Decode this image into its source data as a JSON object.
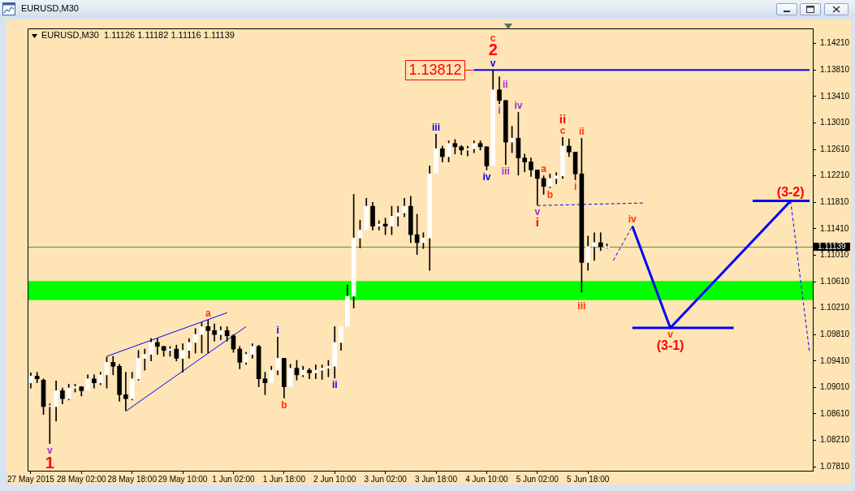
{
  "chart_data": {
    "type": "candlestick",
    "title": "EURUSD,M30",
    "subtitle": "EURUSD,M30  1.11126 1.11182 1.11116 1.11139",
    "categories": [
      "27 May 2015",
      null,
      null,
      null,
      null,
      null,
      null,
      null,
      "28 May 02:00",
      null,
      null,
      null,
      null,
      null,
      null,
      null,
      "28 May 18:00",
      null,
      null,
      null,
      null,
      null,
      null,
      null,
      "29 May 10:00",
      null,
      null,
      null,
      null,
      null,
      null,
      null,
      "1 Jun 02:00",
      null,
      null,
      null,
      null,
      null,
      null,
      null,
      "1 Jun 18:00",
      null,
      null,
      null,
      null,
      null,
      null,
      null,
      "2 Jun 10:00",
      null,
      null,
      null,
      null,
      null,
      null,
      null,
      "3 Jun 02:00",
      null,
      null,
      null,
      null,
      null,
      null,
      null,
      "3 Jun 18:00",
      null,
      null,
      null,
      null,
      null,
      null,
      null,
      "4 Jun 10:00",
      null,
      null,
      null,
      null,
      null,
      null,
      null,
      "5 Jun 02:00",
      null,
      null,
      null,
      null,
      null,
      null,
      null,
      "5 Jun 18:00",
      null,
      null,
      null,
      null,
      null,
      null,
      null,
      null,
      null,
      null,
      null,
      null,
      null,
      null,
      null,
      null,
      null,
      null,
      null,
      null,
      null,
      null,
      null,
      null,
      null,
      null,
      null,
      null,
      null,
      null,
      null,
      null,
      null,
      null,
      null
    ],
    "ohlc": [
      [
        1.0908,
        1.0923,
        1.09,
        1.0918
      ],
      [
        1.0918,
        1.0924,
        1.0908,
        1.0914
      ],
      [
        1.0912,
        1.0914,
        1.086,
        1.0872
      ],
      [
        1.0872,
        1.0876,
        1.0816,
        1.0872
      ],
      [
        1.0872,
        1.0911,
        1.085,
        1.0896
      ],
      [
        1.0896,
        1.09,
        1.0876,
        1.0884
      ],
      [
        1.0884,
        1.0906,
        1.0882,
        1.09
      ],
      [
        1.09,
        1.0906,
        1.0894,
        1.0902
      ],
      [
        1.0902,
        1.0902,
        1.0888,
        1.0896
      ],
      [
        1.0896,
        1.092,
        1.0896,
        1.0914
      ],
      [
        1.0914,
        1.092,
        1.09,
        1.0908
      ],
      [
        1.0908,
        1.0924,
        1.0905,
        1.092
      ],
      [
        1.092,
        1.0947,
        1.09,
        1.0939
      ],
      [
        1.0939,
        1.0948,
        1.092,
        1.0933
      ],
      [
        1.0933,
        1.0936,
        1.088,
        1.089
      ],
      [
        1.089,
        1.0924,
        1.0866,
        1.0884
      ],
      [
        1.0884,
        1.0924,
        1.0882,
        1.0914
      ],
      [
        1.0914,
        1.0957,
        1.0912,
        1.0945
      ],
      [
        1.0945,
        1.0959,
        1.0927,
        1.0951
      ],
      [
        1.0951,
        1.0975,
        1.0941,
        1.0969
      ],
      [
        1.0969,
        1.0975,
        1.0951,
        1.0963
      ],
      [
        1.0963,
        1.0963,
        1.0948,
        1.0957
      ],
      [
        1.0957,
        1.0963,
        1.0948,
        1.0959
      ],
      [
        1.0959,
        1.0965,
        1.0941,
        1.0945
      ],
      [
        1.0945,
        1.0967,
        1.0924,
        1.0957
      ],
      [
        1.0957,
        1.0975,
        1.0945,
        1.0969
      ],
      [
        1.0969,
        1.099,
        1.0953,
        1.0981
      ],
      [
        1.0981,
        1.0999,
        1.0953,
        1.0993
      ],
      [
        1.0993,
        1.1003,
        1.0953,
        1.0987
      ],
      [
        1.0987,
        1.0997,
        1.0971,
        1.0981
      ],
      [
        1.0981,
        1.0993,
        1.0973,
        1.0987
      ],
      [
        1.0987,
        1.0993,
        1.0971,
        1.0979
      ],
      [
        1.0979,
        1.0981,
        1.0954,
        1.0959
      ],
      [
        1.0959,
        1.0963,
        1.0929,
        1.0939
      ],
      [
        1.0939,
        1.0954,
        1.0936,
        1.0951
      ],
      [
        1.0951,
        1.0967,
        1.0945,
        1.0963
      ],
      [
        1.0963,
        1.0965,
        1.0902,
        1.0914
      ],
      [
        1.0914,
        1.0924,
        1.089,
        1.0908
      ],
      [
        1.0908,
        1.0933,
        1.0908,
        1.0927
      ],
      [
        1.0927,
        1.0977,
        1.092,
        1.0945
      ],
      [
        1.0945,
        1.0945,
        1.0885,
        1.0902
      ],
      [
        1.0902,
        1.0936,
        1.0902,
        1.093
      ],
      [
        1.093,
        1.0942,
        1.0912,
        1.092
      ],
      [
        1.092,
        1.0933,
        1.0917,
        1.0927
      ],
      [
        1.0927,
        1.093,
        1.0914,
        1.0923
      ],
      [
        1.0923,
        1.0935,
        1.0914,
        1.0927
      ],
      [
        1.0927,
        1.0935,
        1.0913,
        1.093
      ],
      [
        1.093,
        1.0942,
        1.0917,
        1.0933
      ],
      [
        1.0933,
        1.0993,
        1.0915,
        1.0969
      ],
      [
        1.0969,
        1.0993,
        1.0957,
        1.0993
      ],
      [
        1.0993,
        1.1056,
        1.0993,
        1.1039
      ],
      [
        1.1039,
        1.1193,
        1.1021,
        1.1127
      ],
      [
        1.1127,
        1.1154,
        1.1112,
        1.1139
      ],
      [
        1.1139,
        1.1187,
        1.1139,
        1.1175
      ],
      [
        1.1175,
        1.1181,
        1.1139,
        1.1145
      ],
      [
        1.1145,
        1.1153,
        1.1139,
        1.1148
      ],
      [
        1.1148,
        1.1157,
        1.1132,
        1.1145
      ],
      [
        1.1145,
        1.1175,
        1.1132,
        1.116
      ],
      [
        1.116,
        1.1175,
        1.1145,
        1.1165
      ],
      [
        1.1165,
        1.1187,
        1.1159,
        1.1175
      ],
      [
        1.1175,
        1.119,
        1.112,
        1.1132
      ],
      [
        1.1132,
        1.1163,
        1.1102,
        1.112
      ],
      [
        1.112,
        1.1135,
        1.1111,
        1.1127
      ],
      [
        1.1127,
        1.1236,
        1.1078,
        1.1224
      ],
      [
        1.1224,
        1.1284,
        1.1224,
        1.1262
      ],
      [
        1.1262,
        1.1266,
        1.1242,
        1.125
      ],
      [
        1.125,
        1.1274,
        1.1242,
        1.127
      ],
      [
        1.127,
        1.1276,
        1.1254,
        1.1265
      ],
      [
        1.1265,
        1.1267,
        1.1253,
        1.126
      ],
      [
        1.126,
        1.1266,
        1.1251,
        1.1262
      ],
      [
        1.1262,
        1.1274,
        1.1256,
        1.127
      ],
      [
        1.127,
        1.1274,
        1.126,
        1.1265
      ],
      [
        1.1265,
        1.1265,
        1.123,
        1.1236
      ],
      [
        1.1236,
        1.1381,
        1.1236,
        1.1351
      ],
      [
        1.1351,
        1.1371,
        1.133,
        1.1335
      ],
      [
        1.1335,
        1.1335,
        1.1238,
        1.1272
      ],
      [
        1.1272,
        1.1296,
        1.1256,
        1.1278
      ],
      [
        1.1278,
        1.1317,
        1.1222,
        1.1248
      ],
      [
        1.1248,
        1.1254,
        1.1227,
        1.1242
      ],
      [
        1.1242,
        1.1248,
        1.122,
        1.123
      ],
      [
        1.123,
        1.123,
        1.1177,
        1.1217
      ],
      [
        1.1217,
        1.1221,
        1.1193,
        1.1205
      ],
      [
        1.1205,
        1.1224,
        1.1203,
        1.1217
      ],
      [
        1.1217,
        1.1226,
        1.1209,
        1.1221
      ],
      [
        1.1221,
        1.1279,
        1.1217,
        1.1266
      ],
      [
        1.1266,
        1.1277,
        1.125,
        1.1257
      ],
      [
        1.1257,
        1.1257,
        1.1215,
        1.1224
      ],
      [
        1.1224,
        1.1278,
        1.1045,
        1.109
      ],
      [
        1.109,
        1.113,
        1.1078,
        1.1114
      ],
      [
        1.1114,
        1.1135,
        1.1093,
        1.112
      ],
      [
        1.112,
        1.1135,
        1.1108,
        1.1114
      ],
      [
        1.11126,
        1.11182,
        1.11116,
        1.11139
      ],
      null,
      null,
      null,
      null,
      null,
      null,
      null,
      null,
      null,
      null,
      null,
      null,
      null,
      null,
      null,
      null,
      null,
      null,
      null,
      null,
      null,
      null,
      null,
      null,
      null,
      null,
      null,
      null,
      null,
      null,
      null,
      null
    ],
    "color": "#000000",
    "colors": [
      "#ffffff",
      "#000000",
      "#000000",
      "#ffffff",
      "#ffffff",
      "#000000",
      "#ffffff",
      "#ffffff",
      "#000000",
      "#ffffff",
      "#000000",
      "#ffffff",
      "#ffffff",
      "#000000",
      "#000000",
      "#000000",
      "#ffffff",
      "#ffffff",
      "#ffffff",
      "#ffffff",
      "#000000",
      "#000000",
      "#ffffff",
      "#000000",
      "#ffffff",
      "#ffffff",
      "#ffffff",
      "#ffffff",
      "#000000",
      "#000000",
      "#ffffff",
      "#000000",
      "#000000",
      "#000000",
      "#ffffff",
      "#ffffff",
      "#000000",
      "#000000",
      "#ffffff",
      "#ffffff",
      "#000000",
      "#ffffff",
      "#000000",
      "#ffffff",
      "#000000",
      "#ffffff",
      "#ffffff",
      "#ffffff",
      "#ffffff",
      "#ffffff",
      "#ffffff",
      "#ffffff",
      "#ffffff",
      "#ffffff",
      "#000000",
      "#ffffff",
      "#000000",
      "#ffffff",
      "#ffffff",
      "#ffffff",
      "#000000",
      "#000000",
      "#ffffff",
      "#ffffff",
      "#ffffff",
      "#000000",
      "#ffffff",
      "#000000",
      "#000000",
      "#ffffff",
      "#ffffff",
      "#000000",
      "#000000",
      "#ffffff",
      "#000000",
      "#000000",
      "#ffffff",
      "#000000",
      "#000000",
      "#000000",
      "#000000",
      "#000000",
      "#ffffff",
      "#ffffff",
      "#ffffff",
      "#000000",
      "#000000",
      "#000000",
      "#ffffff",
      "#ffffff",
      "#000000",
      "#ffffff",
      null,
      null,
      null,
      null,
      null,
      null,
      null,
      null,
      null,
      null,
      null,
      null,
      null,
      null,
      null,
      null,
      null,
      null,
      null,
      null,
      null,
      null,
      null,
      null,
      null,
      null,
      null,
      null,
      null,
      null,
      null,
      null
    ],
    "ylim": [
      1.0775,
      1.1444
    ],
    "yticks": [
      {
        "value": 1.0781,
        "label": "1.07810"
      },
      {
        "value": 1.0821,
        "label": "1.08210"
      },
      {
        "value": 1.0861,
        "label": "1.08610"
      },
      {
        "value": 1.0901,
        "label": "1.09010"
      },
      {
        "value": 1.0941,
        "label": "1.09410"
      },
      {
        "value": 1.0981,
        "label": "1.09810"
      },
      {
        "value": 1.1021,
        "label": "1.10210"
      },
      {
        "value": 1.1061,
        "label": "1.10610"
      },
      {
        "value": 1.1101,
        "label": "1.11010"
      },
      {
        "value": 1.1141,
        "label": "1.11410"
      },
      {
        "value": 1.1181,
        "label": "1.11810"
      },
      {
        "value": 1.1221,
        "label": "1.12210"
      },
      {
        "value": 1.1261,
        "label": "1.12610"
      },
      {
        "value": 1.1301,
        "label": "1.13010"
      },
      {
        "value": 1.1341,
        "label": "1.13410"
      },
      {
        "value": 1.1381,
        "label": "1.13810"
      },
      {
        "value": 1.1421,
        "label": "1.14210"
      }
    ],
    "grid": false,
    "legend": false,
    "bands": [
      {
        "axis": "y",
        "from": 1.1033,
        "to": 1.1062,
        "color": "#00ff00"
      }
    ],
    "ref_lines": [
      {
        "axis": "y",
        "value": 1.11139,
        "label": "1.11139",
        "color": "#6b8e23"
      }
    ],
    "series": [
      {
        "type": "line",
        "color": "#0000ff",
        "values": [
          null,
          null,
          null,
          null,
          null,
          null,
          null,
          null,
          null,
          null,
          null,
          null,
          1.0948,
          null,
          null,
          null,
          null,
          null,
          null,
          null,
          null,
          null,
          null,
          null,
          null,
          null,
          null,
          null,
          null,
          null,
          null,
          1.1014,
          null,
          null,
          null,
          null,
          null,
          null,
          null,
          null,
          null,
          null,
          null,
          null,
          null,
          null,
          null,
          null,
          null,
          null,
          null,
          null,
          null,
          null,
          null,
          null,
          null,
          null,
          null,
          null,
          null,
          null,
          null,
          null,
          null,
          null,
          null,
          null,
          null,
          null,
          null,
          null,
          null,
          null,
          null,
          null,
          null,
          null,
          null,
          null,
          null,
          null,
          null,
          null,
          null,
          null,
          null,
          null,
          null,
          null,
          null,
          null,
          null,
          null,
          null,
          null,
          null,
          null,
          null,
          null,
          null,
          null,
          null,
          null,
          null,
          null,
          null,
          null,
          null,
          null,
          null,
          null,
          null,
          null,
          null,
          null,
          null,
          null,
          null,
          null,
          null,
          null,
          null,
          null
        ]
      },
      {
        "type": "line",
        "color": "#0000ff",
        "values": [
          null,
          null,
          null,
          null,
          null,
          null,
          null,
          null,
          null,
          null,
          null,
          null,
          null,
          null,
          null,
          1.0865,
          null,
          null,
          null,
          null,
          null,
          null,
          null,
          null,
          null,
          null,
          null,
          null,
          null,
          null,
          null,
          null,
          null,
          null,
          1.0993,
          null,
          null,
          null,
          null,
          null,
          null,
          null,
          null,
          null,
          null,
          null,
          null,
          null,
          null,
          null,
          null,
          null,
          null,
          null,
          null,
          null,
          null,
          null,
          null,
          null,
          null,
          null,
          null,
          null,
          null,
          null,
          null,
          null,
          null,
          null,
          null,
          null,
          null,
          null,
          null,
          null,
          null,
          null,
          null,
          null,
          null,
          null,
          null,
          null,
          null,
          null,
          null,
          null,
          null,
          null,
          null,
          null,
          null,
          null,
          null,
          null,
          null,
          null,
          null,
          null,
          null,
          null,
          null,
          null,
          null,
          null,
          null,
          null,
          null,
          null,
          null,
          null,
          null,
          null,
          null,
          null,
          null,
          null,
          null,
          null,
          null,
          null,
          null,
          null
        ]
      },
      {
        "type": "line",
        "color": "#0000ff",
        "values": [
          null,
          null,
          null,
          null,
          null,
          null,
          null,
          null,
          null,
          null,
          null,
          null,
          null,
          null,
          null,
          null,
          null,
          null,
          null,
          null,
          null,
          null,
          null,
          null,
          null,
          null,
          null,
          null,
          null,
          null,
          null,
          null,
          null,
          null,
          null,
          null,
          null,
          null,
          null,
          null,
          null,
          null,
          null,
          null,
          null,
          null,
          null,
          null,
          null,
          null,
          null,
          null,
          null,
          null,
          null,
          null,
          null,
          null,
          null,
          null,
          null,
          null,
          null,
          null,
          null,
          null,
          null,
          null,
          null,
          null,
          1.13812,
          null,
          null,
          null,
          null,
          null,
          null,
          null,
          null,
          null,
          null,
          null,
          null,
          null,
          null,
          null,
          null,
          null,
          null,
          null,
          null,
          null,
          null,
          null,
          null,
          null,
          null,
          null,
          null,
          null,
          null,
          null,
          null,
          null,
          null,
          null,
          null,
          null,
          null,
          null,
          null,
          null,
          null,
          null,
          null,
          null,
          null,
          null,
          null,
          null,
          null,
          null,
          null,
          1.13812
        ]
      },
      {
        "type": "line",
        "color": "#0000ff",
        "line_style": "dashed",
        "values": [
          null,
          null,
          null,
          null,
          null,
          null,
          null,
          null,
          null,
          null,
          null,
          null,
          null,
          null,
          null,
          null,
          null,
          null,
          null,
          null,
          null,
          null,
          null,
          null,
          null,
          null,
          null,
          null,
          null,
          null,
          null,
          null,
          null,
          null,
          null,
          null,
          null,
          null,
          null,
          null,
          null,
          null,
          null,
          null,
          null,
          null,
          null,
          null,
          null,
          null,
          null,
          null,
          null,
          null,
          null,
          null,
          null,
          null,
          null,
          null,
          null,
          null,
          null,
          null,
          null,
          null,
          null,
          null,
          null,
          null,
          null,
          null,
          null,
          null,
          null,
          null,
          null,
          null,
          null,
          null,
          1.1176,
          null,
          null,
          null,
          null,
          null,
          null,
          null,
          null,
          null,
          null,
          null,
          null,
          null,
          null,
          null,
          null,
          1.118,
          null,
          null,
          null,
          null,
          null,
          null,
          null,
          null,
          null,
          null,
          null,
          null,
          null,
          null,
          null,
          null,
          null,
          null,
          null,
          null,
          null,
          null,
          null,
          null,
          null,
          null
        ]
      },
      {
        "type": "line",
        "color": "#0000ff",
        "line_style": "dashed",
        "values": [
          null,
          null,
          null,
          null,
          null,
          null,
          null,
          null,
          null,
          null,
          null,
          null,
          null,
          null,
          null,
          null,
          null,
          null,
          null,
          null,
          null,
          null,
          null,
          null,
          null,
          null,
          null,
          null,
          null,
          null,
          null,
          null,
          null,
          null,
          null,
          null,
          null,
          null,
          null,
          null,
          null,
          null,
          null,
          null,
          null,
          null,
          null,
          null,
          null,
          null,
          null,
          null,
          null,
          null,
          null,
          null,
          null,
          null,
          null,
          null,
          null,
          null,
          null,
          null,
          null,
          null,
          null,
          null,
          null,
          null,
          null,
          null,
          null,
          null,
          null,
          null,
          null,
          null,
          null,
          null,
          null,
          null,
          null,
          null,
          null,
          null,
          null,
          null,
          null,
          null,
          null,
          null,
          1.1093,
          null,
          null,
          1.1145,
          null,
          null,
          null,
          null,
          null,
          null,
          null,
          null,
          null,
          null,
          null,
          null,
          null,
          null,
          null,
          null,
          null,
          null,
          null,
          null,
          null,
          null,
          null,
          null,
          null,
          null,
          null,
          null
        ]
      },
      {
        "type": "line",
        "color": "#0000ff",
        "values": [
          null,
          null,
          null,
          null,
          null,
          null,
          null,
          null,
          null,
          null,
          null,
          null,
          null,
          null,
          null,
          null,
          null,
          null,
          null,
          null,
          null,
          null,
          null,
          null,
          null,
          null,
          null,
          null,
          null,
          null,
          null,
          null,
          null,
          null,
          null,
          null,
          null,
          null,
          null,
          null,
          null,
          null,
          null,
          null,
          null,
          null,
          null,
          null,
          null,
          null,
          null,
          null,
          null,
          null,
          null,
          null,
          null,
          null,
          null,
          null,
          null,
          null,
          null,
          null,
          null,
          null,
          null,
          null,
          null,
          null,
          null,
          null,
          null,
          null,
          null,
          null,
          null,
          null,
          null,
          null,
          null,
          null,
          null,
          null,
          null,
          null,
          null,
          null,
          null,
          null,
          null,
          null,
          null,
          null,
          null,
          1.1145,
          null,
          null,
          null,
          null,
          null,
          1.0991,
          null,
          null,
          null,
          null,
          null,
          null,
          null,
          null,
          null,
          null,
          null,
          null,
          null,
          null,
          null,
          null,
          null,
          null,
          1.1183,
          null,
          null,
          null
        ]
      },
      {
        "type": "line",
        "color": "#0000ff",
        "line_style": "dashed",
        "values": [
          null,
          null,
          null,
          null,
          null,
          null,
          null,
          null,
          null,
          null,
          null,
          null,
          null,
          null,
          null,
          null,
          null,
          null,
          null,
          null,
          null,
          null,
          null,
          null,
          null,
          null,
          null,
          null,
          null,
          null,
          null,
          null,
          null,
          null,
          null,
          null,
          null,
          null,
          null,
          null,
          null,
          null,
          null,
          null,
          null,
          null,
          null,
          null,
          null,
          null,
          null,
          null,
          null,
          null,
          null,
          null,
          null,
          null,
          null,
          null,
          null,
          null,
          null,
          null,
          null,
          null,
          null,
          null,
          null,
          null,
          null,
          null,
          null,
          null,
          null,
          null,
          null,
          null,
          null,
          null,
          null,
          null,
          null,
          null,
          null,
          null,
          null,
          null,
          null,
          null,
          null,
          null,
          null,
          null,
          null,
          null,
          null,
          null,
          null,
          null,
          null,
          null,
          null,
          null,
          null,
          null,
          null,
          null,
          null,
          null,
          null,
          null,
          null,
          null,
          null,
          null,
          null,
          null,
          null,
          null,
          1.1183,
          null,
          null,
          1.0953
        ]
      },
      {
        "type": "line",
        "color": "#0000ff",
        "values": [
          null,
          null,
          null,
          null,
          null,
          null,
          null,
          null,
          null,
          null,
          null,
          null,
          null,
          null,
          null,
          null,
          null,
          null,
          null,
          null,
          null,
          null,
          null,
          null,
          null,
          null,
          null,
          null,
          null,
          null,
          null,
          null,
          null,
          null,
          null,
          null,
          null,
          null,
          null,
          null,
          null,
          null,
          null,
          null,
          null,
          null,
          null,
          null,
          null,
          null,
          null,
          null,
          null,
          null,
          null,
          null,
          null,
          null,
          null,
          null,
          null,
          null,
          null,
          null,
          null,
          null,
          null,
          null,
          null,
          null,
          null,
          null,
          null,
          null,
          null,
          null,
          null,
          null,
          null,
          null,
          null,
          null,
          null,
          null,
          null,
          null,
          null,
          null,
          null,
          null,
          null,
          null,
          null,
          null,
          null,
          1.0991,
          null,
          null,
          null,
          null,
          null,
          null,
          null,
          null,
          null,
          null,
          null,
          null,
          null,
          null,
          null,
          1.0991,
          null,
          null,
          null,
          null,
          null,
          null,
          null,
          null,
          null,
          null,
          null,
          null
        ]
      },
      {
        "type": "line",
        "color": "#0000ff",
        "values": [
          null,
          null,
          null,
          null,
          null,
          null,
          null,
          null,
          null,
          null,
          null,
          null,
          null,
          null,
          null,
          null,
          null,
          null,
          null,
          null,
          null,
          null,
          null,
          null,
          null,
          null,
          null,
          null,
          null,
          null,
          null,
          null,
          null,
          null,
          null,
          null,
          null,
          null,
          null,
          null,
          null,
          null,
          null,
          null,
          null,
          null,
          null,
          null,
          null,
          null,
          null,
          null,
          null,
          null,
          null,
          null,
          null,
          null,
          null,
          null,
          null,
          null,
          null,
          null,
          null,
          null,
          null,
          null,
          null,
          null,
          null,
          null,
          null,
          null,
          null,
          null,
          null,
          null,
          null,
          null,
          null,
          null,
          null,
          null,
          null,
          null,
          null,
          null,
          null,
          null,
          null,
          null,
          null,
          null,
          null,
          null,
          null,
          null,
          null,
          null,
          null,
          null,
          null,
          null,
          null,
          null,
          null,
          null,
          null,
          null,
          null,
          null,
          null,
          null,
          1.1183,
          null,
          null,
          null,
          null,
          null,
          null,
          null,
          null,
          1.1183
        ]
      }
    ],
    "annotations": [
      "v",
      "1",
      "a",
      "i",
      "b",
      "ii",
      "iii",
      "iv",
      "v",
      "2",
      "c",
      "1.13812",
      "i",
      "ii",
      "iii",
      "iv",
      "v",
      "i",
      "a",
      "b",
      "c",
      "ii",
      "i",
      "ii",
      "iii",
      "iv",
      "v",
      "(3-1)",
      "(3-2)"
    ]
  }
}
